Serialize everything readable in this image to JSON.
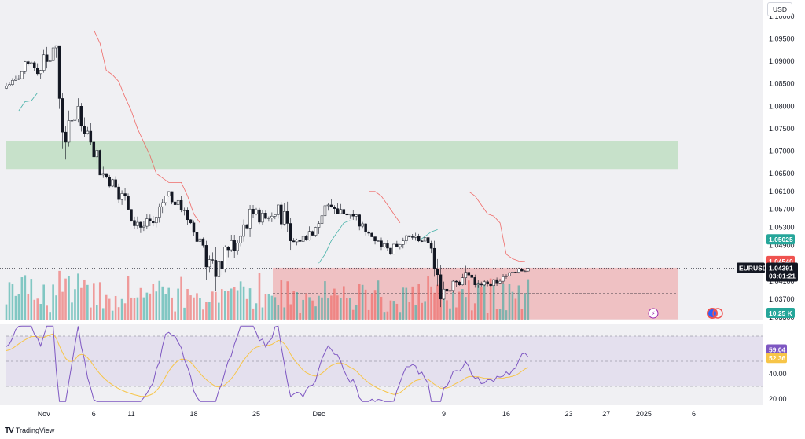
{
  "currency_unit": "USD",
  "brand": {
    "name": "TradingView",
    "logo": "TV"
  },
  "symbol": "EURUSD",
  "current_price": "1.04391",
  "countdown": "03:01:21",
  "colors": {
    "up": "#26a69a",
    "down": "#ef5350",
    "rsi_line": "#7e57c2",
    "rsi_ma": "#f7c548",
    "demand_zone": "#a5d6a7",
    "supply_zone": "#ef9a9a"
  },
  "price_axis": {
    "ylim": [
      1.03,
      1.1
    ],
    "ticks": [
      "1.10000",
      "1.09500",
      "1.09000",
      "1.08500",
      "1.08000",
      "1.07500",
      "1.07000",
      "1.06500",
      "1.06100",
      "1.05700",
      "1.05300",
      "1.04900",
      "1.04100",
      "1.03700",
      "1.03300"
    ]
  },
  "price_tags": [
    {
      "label": "1.05025",
      "value": 1.05025,
      "color": "#26a69a"
    },
    {
      "label": "1.04540",
      "value": 1.0454,
      "color": "#ef5350"
    },
    {
      "label": "10.25 K",
      "color": "#26a69a"
    }
  ],
  "rsi_axis": {
    "ylim": [
      15,
      80
    ],
    "ticks": [
      "40.00",
      "20.00"
    ]
  },
  "rsi_tags": [
    {
      "label": "59.04",
      "value": 59.04,
      "color": "#7e57c2"
    },
    {
      "label": "52.36",
      "value": 52.36,
      "color": "#f7c548"
    }
  ],
  "x_axis": {
    "ticks": [
      {
        "label": "Nov",
        "i": 3
      },
      {
        "label": "6",
        "i": 7
      },
      {
        "label": "11",
        "i": 10
      },
      {
        "label": "18",
        "i": 15
      },
      {
        "label": "25",
        "i": 20
      },
      {
        "label": "Dec",
        "i": 25
      },
      {
        "label": "9",
        "i": 35
      },
      {
        "label": "16",
        "i": 40
      },
      {
        "label": "23",
        "i": 45
      },
      {
        "label": "27",
        "i": 48
      },
      {
        "label": "2025",
        "i": 51
      },
      {
        "label": "6",
        "i": 55
      }
    ]
  },
  "chart_data": {
    "type": "candlestick",
    "symbol": "EURUSD",
    "timeframe": "4h",
    "ylim": [
      1.03,
      1.1
    ],
    "zones": [
      {
        "kind": "demand",
        "from": 1.066,
        "to": 1.0722,
        "mid": 1.0691
      },
      {
        "kind": "supply",
        "from": 1.0325,
        "to": 1.044,
        "mid": 1.0382
      }
    ],
    "supertrend_segments": [
      {
        "trend": "up",
        "points": [
          [
            1.079,
            1.081
          ],
          [
            1.0812,
            1.083
          ]
        ]
      },
      {
        "trend": "down",
        "points": [
          [
            1.097,
            1.094
          ],
          [
            1.088,
            1.087
          ],
          [
            1.0855,
            1.082
          ],
          [
            1.079,
            1.075
          ],
          [
            1.072,
            1.069
          ],
          [
            1.065,
            1.064
          ],
          [
            1.063,
            1.063
          ],
          [
            1.063,
            1.06
          ],
          [
            1.056,
            1.054
          ]
        ]
      },
      {
        "trend": "up",
        "points": [
          [
            1.045,
            1.047
          ],
          [
            1.05,
            1.052
          ],
          [
            1.054,
            1.0545
          ]
        ]
      },
      {
        "trend": "down",
        "points": [
          [
            1.061,
            1.061
          ],
          [
            1.06,
            1.058
          ],
          [
            1.056,
            1.054
          ]
        ]
      },
      {
        "trend": "up",
        "points": [
          [
            1.05,
            1.051
          ],
          [
            1.052,
            1.0525
          ]
        ]
      },
      {
        "trend": "down",
        "points": [
          [
            1.061,
            1.06
          ],
          [
            1.058,
            1.056
          ],
          [
            1.0555,
            1.054
          ],
          [
            1.047,
            1.046
          ],
          [
            1.0455,
            1.0454
          ]
        ]
      }
    ],
    "series_daily": [
      {
        "date": "Oct 31",
        "o": 1.084,
        "h": 1.088,
        "l": 1.082,
        "c": 1.086
      },
      {
        "date": "Nov 1",
        "o": 1.086,
        "h": 1.0905,
        "l": 1.085,
        "c": 1.0895
      },
      {
        "date": "Nov 4",
        "o": 1.0895,
        "h": 1.0925,
        "l": 1.086,
        "c": 1.088
      },
      {
        "date": "Nov 5",
        "o": 1.088,
        "h": 1.0975,
        "l": 1.086,
        "c": 1.093
      },
      {
        "date": "Nov 6",
        "o": 1.093,
        "h": 1.0935,
        "l": 1.068,
        "c": 1.072
      },
      {
        "date": "Nov 7",
        "o": 1.072,
        "h": 1.083,
        "l": 1.071,
        "c": 1.08
      },
      {
        "date": "Nov 8",
        "o": 1.08,
        "h": 1.081,
        "l": 1.071,
        "c": 1.072
      },
      {
        "date": "Nov 11",
        "o": 1.072,
        "h": 1.073,
        "l": 1.064,
        "c": 1.065
      },
      {
        "date": "Nov 12",
        "o": 1.065,
        "h": 1.067,
        "l": 1.061,
        "c": 1.062
      },
      {
        "date": "Nov 13",
        "o": 1.062,
        "h": 1.064,
        "l": 1.056,
        "c": 1.057
      },
      {
        "date": "Nov 14",
        "o": 1.057,
        "h": 1.058,
        "l": 1.051,
        "c": 1.053
      },
      {
        "date": "Nov 15",
        "o": 1.053,
        "h": 1.057,
        "l": 1.051,
        "c": 1.054
      },
      {
        "date": "Nov 18",
        "o": 1.054,
        "h": 1.061,
        "l": 1.053,
        "c": 1.06
      },
      {
        "date": "Nov 19",
        "o": 1.06,
        "h": 1.061,
        "l": 1.056,
        "c": 1.059
      },
      {
        "date": "Nov 20",
        "o": 1.059,
        "h": 1.06,
        "l": 1.053,
        "c": 1.054
      },
      {
        "date": "Nov 21",
        "o": 1.054,
        "h": 1.055,
        "l": 1.048,
        "c": 1.049
      },
      {
        "date": "Nov 22",
        "o": 1.049,
        "h": 1.05,
        "l": 1.0335,
        "c": 1.042
      },
      {
        "date": "Nov 25",
        "o": 1.042,
        "h": 1.049,
        "l": 1.04,
        "c": 1.048
      },
      {
        "date": "Nov 26",
        "o": 1.048,
        "h": 1.052,
        "l": 1.043,
        "c": 1.051
      },
      {
        "date": "Nov 27",
        "o": 1.051,
        "h": 1.058,
        "l": 1.047,
        "c": 1.056
      },
      {
        "date": "Nov 28",
        "o": 1.056,
        "h": 1.059,
        "l": 1.053,
        "c": 1.055
      },
      {
        "date": "Nov 29",
        "o": 1.055,
        "h": 1.06,
        "l": 1.053,
        "c": 1.058
      },
      {
        "date": "Dec 2",
        "o": 1.058,
        "h": 1.059,
        "l": 1.048,
        "c": 1.05
      },
      {
        "date": "Dec 3",
        "o": 1.05,
        "h": 1.054,
        "l": 1.049,
        "c": 1.051
      },
      {
        "date": "Dec 4",
        "o": 1.051,
        "h": 1.056,
        "l": 1.05,
        "c": 1.053
      },
      {
        "date": "Dec 5",
        "o": 1.053,
        "h": 1.059,
        "l": 1.05,
        "c": 1.058
      },
      {
        "date": "Dec 6",
        "o": 1.058,
        "h": 1.063,
        "l": 1.055,
        "c": 1.057
      },
      {
        "date": "Dec 9",
        "o": 1.057,
        "h": 1.0595,
        "l": 1.054,
        "c": 1.0555
      },
      {
        "date": "Dec 10",
        "o": 1.0555,
        "h": 1.056,
        "l": 1.051,
        "c": 1.052
      },
      {
        "date": "Dec 11",
        "o": 1.052,
        "h": 1.053,
        "l": 1.049,
        "c": 1.05
      },
      {
        "date": "Dec 12",
        "o": 1.05,
        "h": 1.051,
        "l": 1.046,
        "c": 1.047
      },
      {
        "date": "Dec 13",
        "o": 1.047,
        "h": 1.052,
        "l": 1.046,
        "c": 1.05
      },
      {
        "date": "Dec 16",
        "o": 1.05,
        "h": 1.053,
        "l": 1.049,
        "c": 1.051
      },
      {
        "date": "Dec 17",
        "o": 1.051,
        "h": 1.052,
        "l": 1.048,
        "c": 1.0495
      },
      {
        "date": "Dec 18",
        "o": 1.0495,
        "h": 1.05,
        "l": 1.035,
        "c": 1.037
      },
      {
        "date": "Dec 19",
        "o": 1.037,
        "h": 1.043,
        "l": 1.0345,
        "c": 1.041
      },
      {
        "date": "Dec 20",
        "o": 1.041,
        "h": 1.0445,
        "l": 1.036,
        "c": 1.043
      },
      {
        "date": "Dec 23",
        "o": 1.043,
        "h": 1.044,
        "l": 1.039,
        "c": 1.0405
      },
      {
        "date": "Dec 24",
        "o": 1.0405,
        "h": 1.042,
        "l": 1.039,
        "c": 1.04
      },
      {
        "date": "Dec 26",
        "o": 1.04,
        "h": 1.043,
        "l": 1.0395,
        "c": 1.042
      },
      {
        "date": "Dec 27",
        "o": 1.042,
        "h": 1.0445,
        "l": 1.041,
        "c": 1.043
      },
      {
        "date": "Dec 30",
        "o": 1.043,
        "h": 1.0445,
        "l": 1.042,
        "c": 1.0439
      }
    ]
  }
}
